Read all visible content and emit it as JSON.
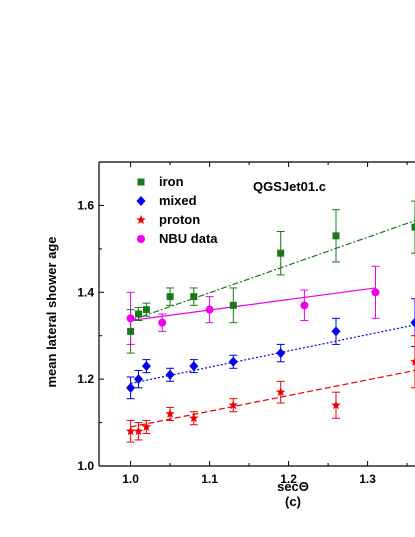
{
  "chart_data": {
    "type": "scatter",
    "ylabel": "mean lateral shower age",
    "xlabel": "secΘ",
    "panel_label": "(c)",
    "annotation": "QGSJet01.c",
    "xlim": [
      0.96,
      1.36
    ],
    "ylim": [
      1.0,
      1.7
    ],
    "x_ticks": [
      1.0,
      1.1,
      1.2,
      1.3
    ],
    "x_tick_labels": [
      "1.0",
      "1.1",
      "1.2",
      "1.3"
    ],
    "y_ticks": [
      1.0,
      1.2,
      1.4,
      1.6
    ],
    "y_tick_labels": [
      "1.0",
      "1.2",
      "1.4",
      "1.6"
    ],
    "legend_placement": "top-left",
    "grid": false,
    "series": [
      {
        "name": "iron",
        "color": "#1a7a1a",
        "marker": "square",
        "line_style": "dashdot",
        "x": [
          1.0,
          1.01,
          1.02,
          1.05,
          1.08,
          1.13,
          1.19,
          1.26,
          1.36
        ],
        "y": [
          1.31,
          1.35,
          1.36,
          1.39,
          1.39,
          1.37,
          1.49,
          1.53,
          1.55
        ],
        "err": [
          0.05,
          0.015,
          0.015,
          0.02,
          0.02,
          0.04,
          0.05,
          0.06,
          0.06
        ],
        "fit": [
          1.335,
          1.565
        ]
      },
      {
        "name": "mixed",
        "color": "#0000ee",
        "marker": "diamond",
        "line_style": "dotted",
        "x": [
          1.0,
          1.01,
          1.02,
          1.05,
          1.08,
          1.13,
          1.19,
          1.26,
          1.36
        ],
        "y": [
          1.18,
          1.2,
          1.23,
          1.21,
          1.23,
          1.24,
          1.26,
          1.31,
          1.33
        ],
        "err": [
          0.025,
          0.02,
          0.015,
          0.015,
          0.015,
          0.015,
          0.02,
          0.03,
          0.055
        ],
        "fit": [
          1.19,
          1.325
        ]
      },
      {
        "name": "proton",
        "color": "#ee0000",
        "marker": "star",
        "line_style": "dashed",
        "x": [
          1.0,
          1.01,
          1.02,
          1.05,
          1.08,
          1.13,
          1.19,
          1.26,
          1.36
        ],
        "y": [
          1.08,
          1.08,
          1.09,
          1.12,
          1.11,
          1.14,
          1.17,
          1.14,
          1.24
        ],
        "err": [
          0.025,
          0.02,
          0.015,
          0.015,
          0.015,
          0.015,
          0.025,
          0.03,
          0.06
        ],
        "fit": [
          1.09,
          1.22
        ]
      },
      {
        "name": "NBU data",
        "color": "#ee00ee",
        "marker": "circle",
        "line_style": "solid",
        "x": [
          1.0,
          1.04,
          1.1,
          1.22,
          1.31
        ],
        "y": [
          1.34,
          1.33,
          1.36,
          1.37,
          1.4
        ],
        "err": [
          0.06,
          0.02,
          0.03,
          0.035,
          0.06
        ],
        "fit": [
          1.335,
          1.41
        ]
      }
    ]
  }
}
